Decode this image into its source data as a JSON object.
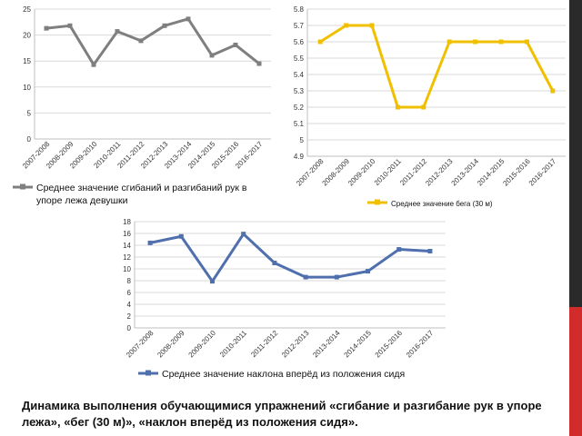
{
  "chart_data": [
    {
      "type": "line",
      "categories": [
        "2007-2008",
        "2008-2009",
        "2009-2010",
        "2010-2011",
        "2011-2012",
        "2012-2013",
        "2013-2014",
        "2014-2015",
        "2015-2016",
        "2016-2017"
      ],
      "series": [
        {
          "name": "Среднее значение сгибаний и разгибаний рук в упоре лежа девушки",
          "values": [
            21.3,
            21.8,
            14.3,
            20.7,
            18.9,
            21.8,
            23.1,
            16.1,
            18.1,
            14.5
          ]
        }
      ],
      "yticks": [
        "0",
        "5",
        "10",
        "15",
        "20",
        "25"
      ],
      "ylim": [
        0,
        25
      ],
      "color": "#7f7f7f",
      "legend": {
        "line1": "Среднее значение сгибаний и разгибаний рук в",
        "line2": "упоре лежа девушки"
      }
    },
    {
      "type": "line",
      "categories": [
        "2007-2008",
        "2008-2009",
        "2009-2010",
        "2010-2011",
        "2011-2012",
        "2012-2013",
        "2013-2014",
        "2014-2015",
        "2015-2016",
        "2016-2017"
      ],
      "series": [
        {
          "name": "Среднее значение бега (30 м)",
          "values": [
            5.6,
            5.7,
            5.7,
            5.2,
            5.2,
            5.6,
            5.6,
            5.6,
            5.6,
            5.3
          ]
        }
      ],
      "yticks": [
        "4.9",
        "5",
        "5.1",
        "5.2",
        "5.3",
        "5.4",
        "5.5",
        "5.6",
        "5.7",
        "5.8"
      ],
      "ylim": [
        4.9,
        5.8
      ],
      "color": "#f0c000",
      "legend": {
        "line1": "Среднее значение бега (30 м)"
      }
    },
    {
      "type": "line",
      "categories": [
        "2007-2008",
        "2008-2009",
        "2009-2010",
        "2010-2011",
        "2011-2012",
        "2012-2013",
        "2013-2014",
        "2014-2015",
        "2015-2016",
        "2016-2017"
      ],
      "series": [
        {
          "name": "Среднее значение наклона вперёд из положения сидя",
          "values": [
            14.4,
            15.5,
            7.9,
            15.9,
            11.0,
            8.6,
            8.6,
            9.6,
            13.3,
            13.0
          ]
        }
      ],
      "yticks": [
        "0",
        "2",
        "4",
        "6",
        "8",
        "10",
        "12",
        "14",
        "16",
        "18"
      ],
      "ylim": [
        0,
        18
      ],
      "color": "#4f6fad",
      "legend": {
        "line1": "Среднее значение наклона вперёд из положения сидя"
      }
    }
  ],
  "caption": "Динамика выполнения обучающимися упражнений «сгибание и разгибание рук в упоре лежа», «бег (30 м)», «наклон вперёд из положения сидя»."
}
